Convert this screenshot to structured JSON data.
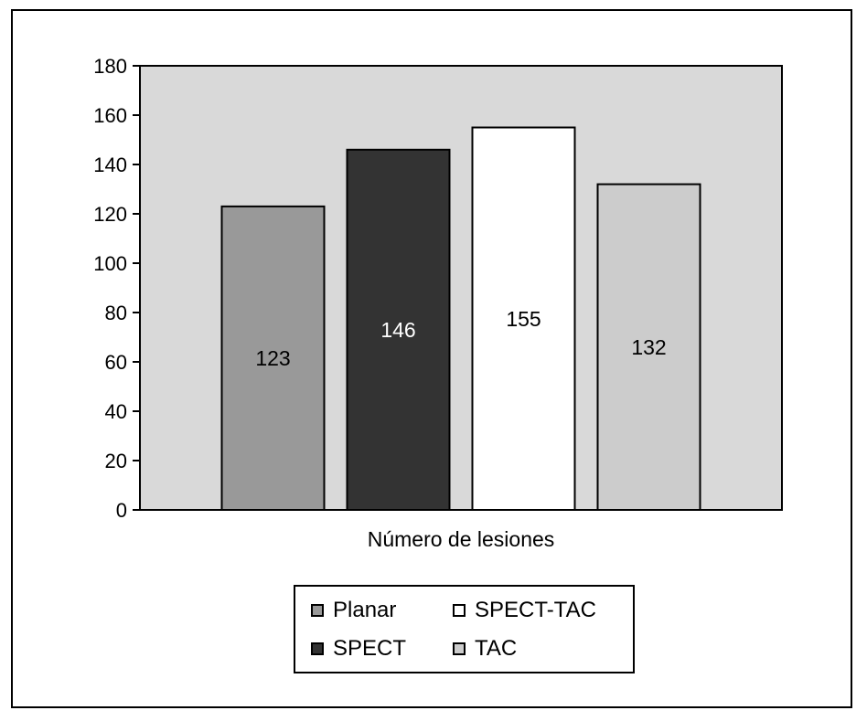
{
  "chart_data": {
    "type": "bar",
    "categories": [
      "Planar",
      "SPECT",
      "SPECT-TAC",
      "TAC"
    ],
    "values": [
      123,
      146,
      155,
      132
    ],
    "value_labels": [
      "123",
      "146",
      "155",
      "132"
    ],
    "xlabel": "Número de lesiones",
    "ylim": [
      0,
      180
    ],
    "yticks": [
      0,
      20,
      40,
      60,
      80,
      100,
      120,
      140,
      160,
      180
    ],
    "grid": false,
    "legend_position": "bottom-center",
    "plot_background": "#d9d9d9",
    "colors": [
      "#999999",
      "#333333",
      "#ffffff",
      "#cccccc"
    ],
    "label_colors": [
      "#000000",
      "#ffffff",
      "#000000",
      "#000000"
    ],
    "legend": [
      {
        "label": "Planar",
        "color": "#999999"
      },
      {
        "label": "SPECT-TAC",
        "color": "#ffffff"
      },
      {
        "label": "SPECT",
        "color": "#333333"
      },
      {
        "label": "TAC",
        "color": "#cccccc"
      }
    ]
  }
}
